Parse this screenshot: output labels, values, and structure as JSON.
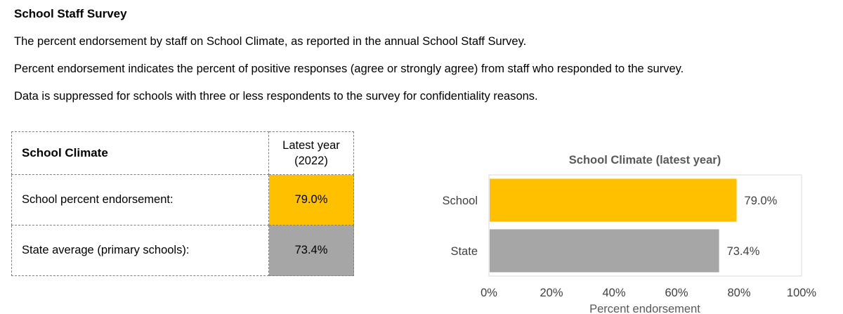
{
  "heading": "School Staff Survey",
  "paragraphs": [
    "The percent endorsement by staff on School Climate, as reported in the annual School Staff Survey.",
    "Percent endorsement indicates the percent of positive responses (agree or strongly agree) from staff who responded to the survey.",
    "Data is suppressed for schools with three or less respondents to the survey for confidentiality reasons."
  ],
  "table": {
    "header_label": "School Climate",
    "header_year_line1": "Latest year",
    "header_year_line2": "(2022)",
    "rows": [
      {
        "label": "School percent endorsement:",
        "value": "79.0%"
      },
      {
        "label": "State average (primary schools):",
        "value": "73.4%"
      }
    ]
  },
  "colors": {
    "school": "#ffc000",
    "state": "#a6a6a6",
    "axis_text": "#404040"
  },
  "chart_data": {
    "type": "bar",
    "orientation": "horizontal",
    "title": "School Climate (latest year)",
    "xlabel": "Percent endorsement",
    "categories": [
      "School",
      "State"
    ],
    "values": [
      79.0,
      73.4
    ],
    "value_labels": [
      "79.0%",
      "73.4%"
    ],
    "xlim": [
      0,
      100
    ],
    "ticks": [
      0,
      20,
      40,
      60,
      80,
      100
    ],
    "tick_labels": [
      "0%",
      "20%",
      "40%",
      "60%",
      "80%",
      "100%"
    ],
    "grid": false,
    "legend": "none"
  }
}
